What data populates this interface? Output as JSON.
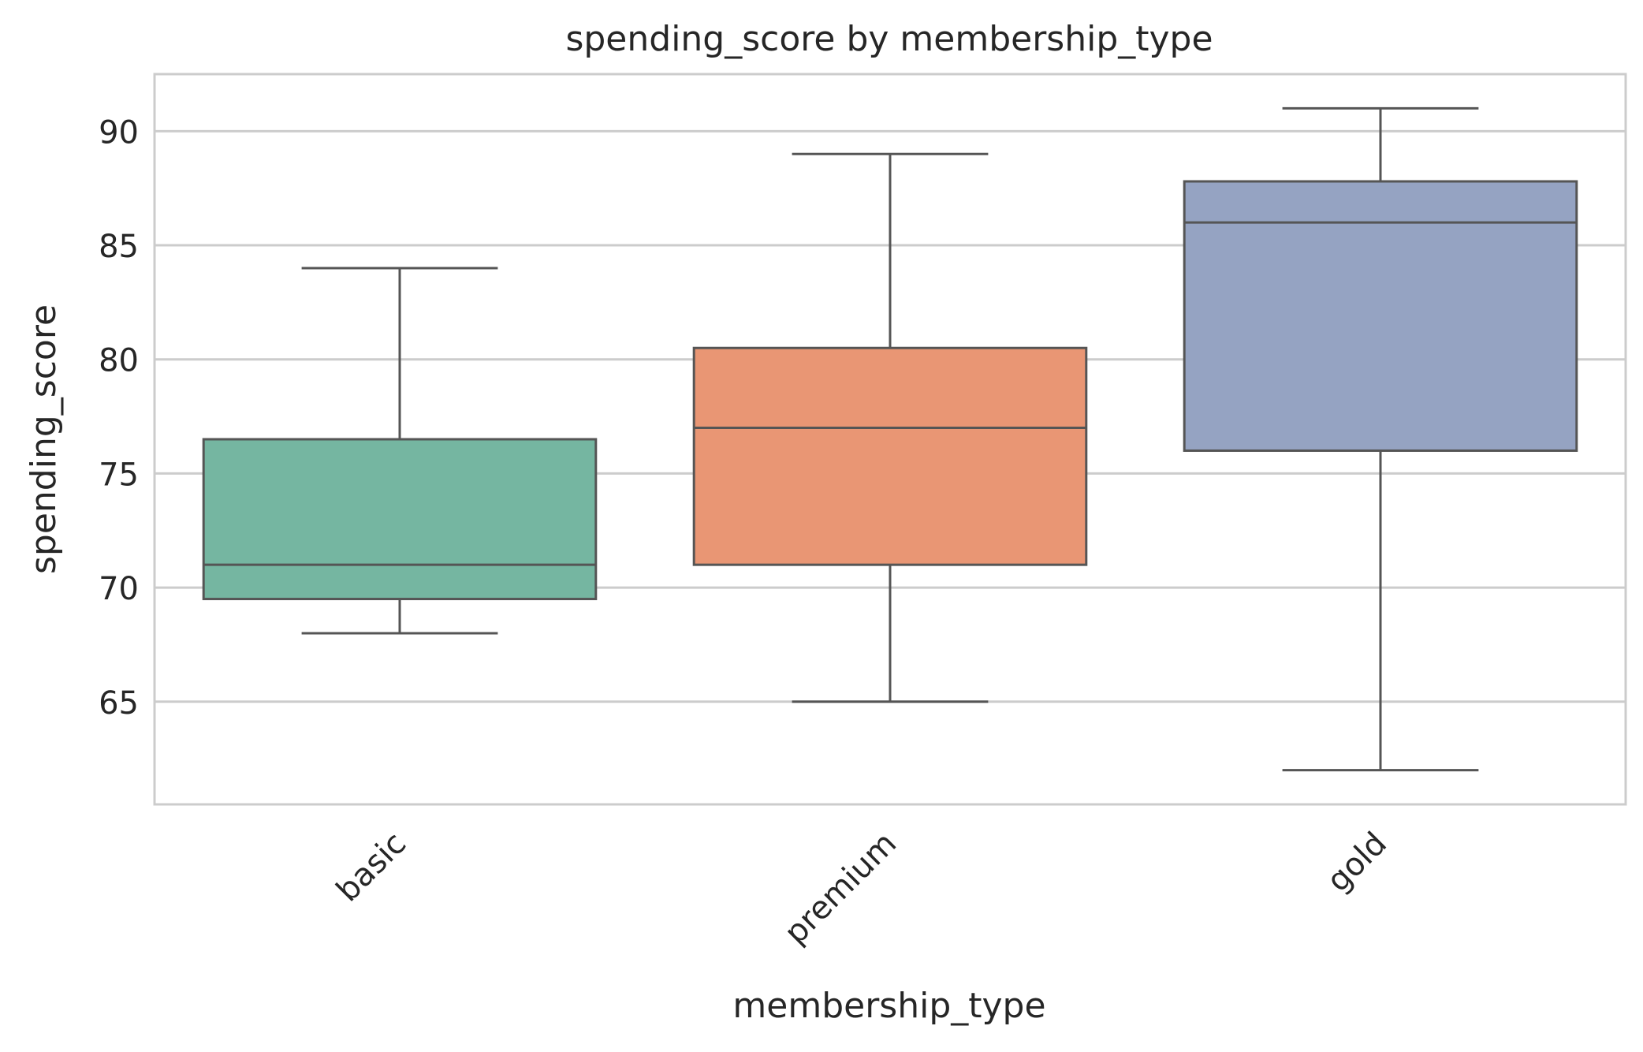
{
  "chart_data": {
    "type": "box",
    "title": "spending_score by membership_type",
    "xlabel": "membership_type",
    "ylabel": "spending_score",
    "ylim": [
      60.5,
      92.5
    ],
    "yticks": [
      65,
      70,
      75,
      80,
      85,
      90
    ],
    "grid": true,
    "categories": [
      "basic",
      "premium",
      "gold"
    ],
    "boxes": [
      {
        "category": "basic",
        "whisker_low": 68,
        "q1": 69.5,
        "median": 71,
        "q3": 76.5,
        "whisker_high": 84,
        "color": "#75b6a1"
      },
      {
        "category": "premium",
        "whisker_low": 65,
        "q1": 71,
        "median": 77,
        "q3": 80.5,
        "whisker_high": 89,
        "color": "#e99674"
      },
      {
        "category": "gold",
        "whisker_low": 62,
        "q1": 76,
        "median": 86,
        "q3": 87.8,
        "whisker_high": 91,
        "color": "#95a3c2"
      }
    ],
    "colors": {
      "line": "#555555",
      "grid": "#cccccc",
      "frame": "#cccccc",
      "text": "#262626"
    }
  }
}
